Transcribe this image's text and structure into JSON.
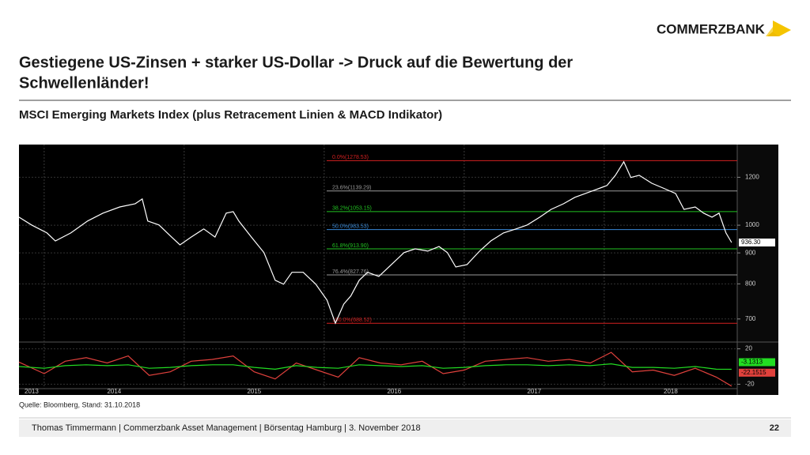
{
  "header": {
    "logo": "COMMERZBANK",
    "title_lines": [
      "Gestiegene US-Zinsen + starker US-Dollar -> Druck auf die Bewertung der",
      "Schwellenländer!"
    ],
    "subtitle": "MSCI Emerging Markets Index (plus Retracement Linien & MACD Indikator)"
  },
  "chart_data": [
    {
      "type": "line",
      "log_y": true,
      "grid": true,
      "x": [
        2013.82,
        2013.91,
        2014.02,
        2014.08,
        2014.19,
        2014.31,
        2014.42,
        2014.54,
        2014.65,
        2014.7,
        2014.74,
        2014.82,
        2014.91,
        2014.97,
        2015.05,
        2015.14,
        2015.22,
        2015.3,
        2015.35,
        2015.39,
        2015.48,
        2015.57,
        2015.65,
        2015.71,
        2015.77,
        2015.85,
        2015.94,
        2016.02,
        2016.08,
        2016.14,
        2016.19,
        2016.25,
        2016.31,
        2016.39,
        2016.48,
        2016.57,
        2016.65,
        2016.74,
        2016.82,
        2016.88,
        2016.94,
        2017.02,
        2017.11,
        2017.19,
        2017.28,
        2017.37,
        2017.45,
        2017.54,
        2017.62,
        2017.71,
        2017.79,
        2017.91,
        2018.02,
        2018.08,
        2018.14,
        2018.19,
        2018.25,
        2018.34,
        2018.42,
        2018.51,
        2018.57,
        2018.65,
        2018.71,
        2018.77,
        2018.82,
        2018.87,
        2018.91
      ],
      "series": [
        {
          "color": "#ffffff",
          "last_value_label": "936.30",
          "values": [
            1031,
            1001,
            971,
            942,
            971,
            1016,
            1047,
            1072,
            1085,
            1105,
            1016,
            1001,
            956,
            928,
            956,
            986,
            956,
            1047,
            1053,
            1016,
            956,
            901,
            811,
            799,
            836,
            836,
            799,
            752,
            689,
            741,
            764,
            811,
            836,
            823,
            861,
            901,
            914,
            906,
            922,
            901,
            853,
            861,
            906,
            942,
            971,
            986,
            1001,
            1031,
            1062,
            1085,
            1112,
            1138,
            1163,
            1209,
            1273,
            1199,
            1209,
            1173,
            1152,
            1128,
            1062,
            1072,
            1047,
            1031,
            1047,
            971,
            936.3
          ]
        }
      ],
      "xlim": [
        2013.82,
        2018.95
      ],
      "ylim": [
        647,
        1359
      ],
      "yticks": [
        700,
        800,
        900,
        1000,
        1200
      ],
      "retracements": [
        {
          "label": "0.0%(1278.53)",
          "value": 1278.53,
          "color": "#d42020"
        },
        {
          "label": "23.6%(1139.29)",
          "value": 1139.29,
          "color": "#9a9a9a"
        },
        {
          "label": "38.2%(1053.15)",
          "value": 1053.15,
          "color": "#22c322"
        },
        {
          "label": "50.0%(983.53)",
          "value": 983.53,
          "color": "#3a8ad8"
        },
        {
          "label": "61.8%(913.90)",
          "value": 913.9,
          "color": "#22c322"
        },
        {
          "label": "76.4%(827.76)",
          "value": 827.76,
          "color": "#9a9a9a"
        },
        {
          "label": "100.0%(688.52)",
          "value": 688.52,
          "color": "#d42020"
        }
      ]
    },
    {
      "type": "line",
      "x": [
        2013.82,
        2014.0,
        2014.15,
        2014.3,
        2014.45,
        2014.6,
        2014.75,
        2014.9,
        2015.05,
        2015.2,
        2015.35,
        2015.5,
        2015.65,
        2015.8,
        2015.95,
        2016.1,
        2016.25,
        2016.4,
        2016.55,
        2016.7,
        2016.85,
        2017.0,
        2017.15,
        2017.3,
        2017.45,
        2017.6,
        2017.75,
        2017.9,
        2018.05,
        2018.2,
        2018.35,
        2018.5,
        2018.65,
        2018.8,
        2018.91
      ],
      "series": [
        {
          "color": "#e0413c",
          "values": [
            5,
            -8,
            6,
            10,
            4,
            12,
            -10,
            -6,
            6,
            8,
            12,
            -6,
            -14,
            4,
            -4,
            -12,
            10,
            4,
            2,
            6,
            -8,
            -4,
            6,
            8,
            10,
            6,
            8,
            4,
            16,
            -6,
            -4,
            -10,
            -2,
            -12,
            -22.1515
          ]
        },
        {
          "color": "#22dd22",
          "values": [
            0,
            -2,
            1,
            2,
            1,
            2,
            -2,
            -1,
            1,
            2,
            2,
            -1,
            -3,
            1,
            -1,
            -2,
            2,
            1,
            0,
            1,
            -2,
            -1,
            1,
            2,
            2,
            1,
            2,
            1,
            3,
            -1,
            -1,
            -2,
            0,
            -3,
            -3.1313
          ]
        }
      ],
      "xlim": [
        2013.82,
        2018.95
      ],
      "ylim": [
        -25,
        25
      ],
      "yticks": [
        -20,
        20
      ],
      "xticks": [
        2013,
        2014,
        2015,
        2016,
        2017,
        2018
      ]
    }
  ],
  "source": "Quelle: Bloomberg, Stand: 31.10.2018",
  "footer": {
    "text": "Thomas Timmermann | Commerzbank Asset Management | Börsentag Hamburg | 3. November 2018",
    "page": "22"
  }
}
